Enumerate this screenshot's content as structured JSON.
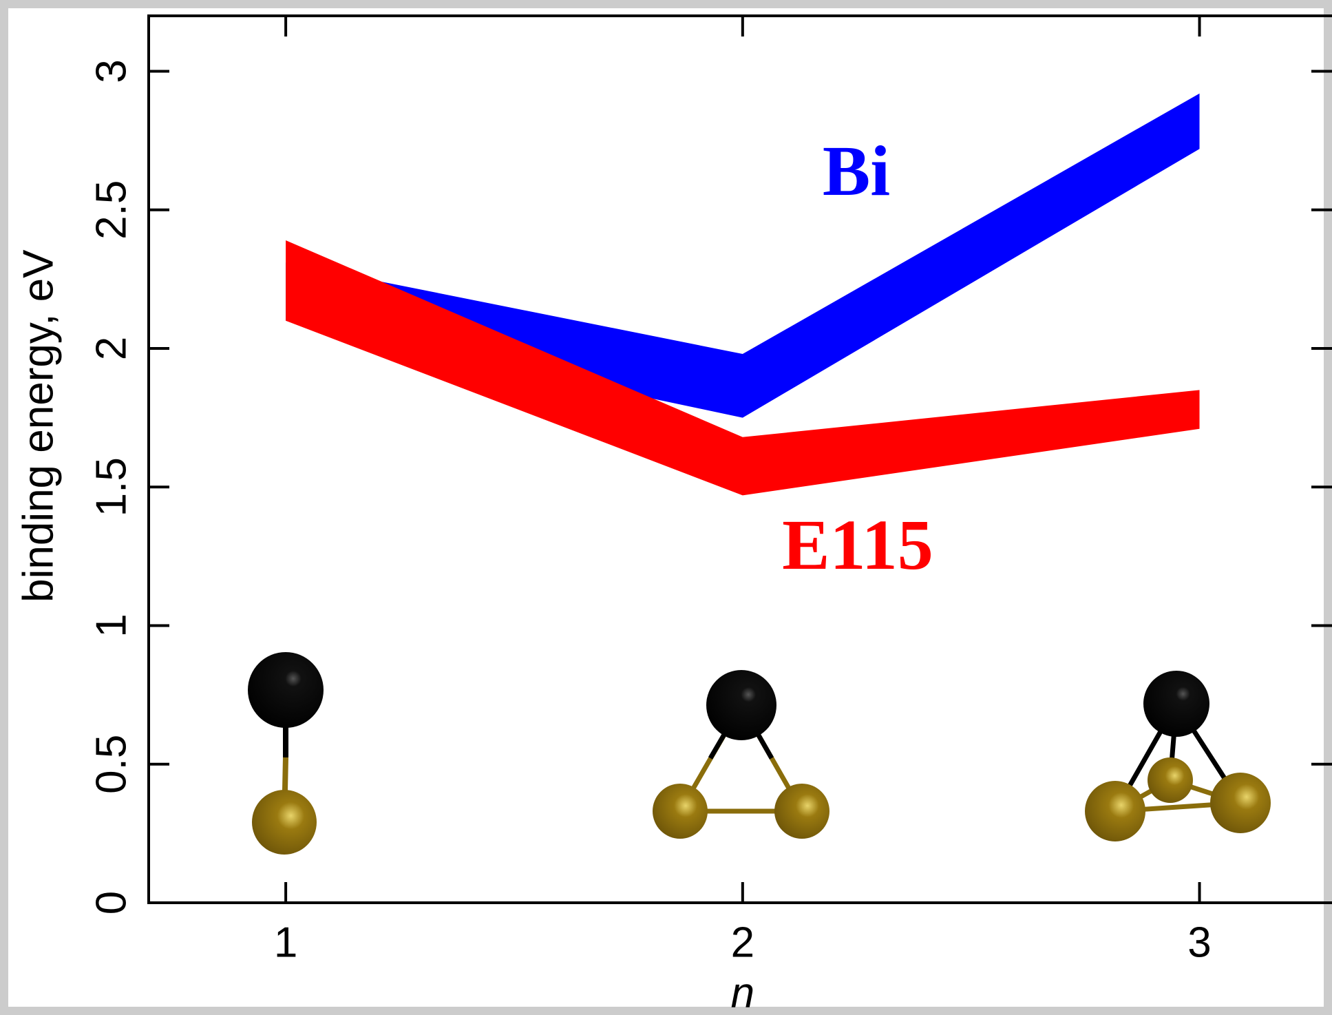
{
  "chart_data": {
    "type": "band",
    "x_label": "n",
    "y_label": "binding energy, eV",
    "x": [
      1,
      2,
      3
    ],
    "series": [
      {
        "name": "Bi",
        "color": "#0000ff",
        "lower": [
          2.1,
          1.75,
          2.72
        ],
        "upper": [
          2.31,
          1.98,
          2.92
        ]
      },
      {
        "name": "E115",
        "color": "#ff0000",
        "lower": [
          2.1,
          1.47,
          1.71
        ],
        "upper": [
          2.39,
          1.68,
          1.85
        ]
      }
    ],
    "xlim": [
      0.7,
      3.29
    ],
    "ylim": [
      0,
      3.2
    ],
    "xticks": [
      1,
      2,
      3
    ],
    "yticks": [
      0,
      0.5,
      1,
      1.5,
      2,
      2.5,
      3
    ]
  }
}
